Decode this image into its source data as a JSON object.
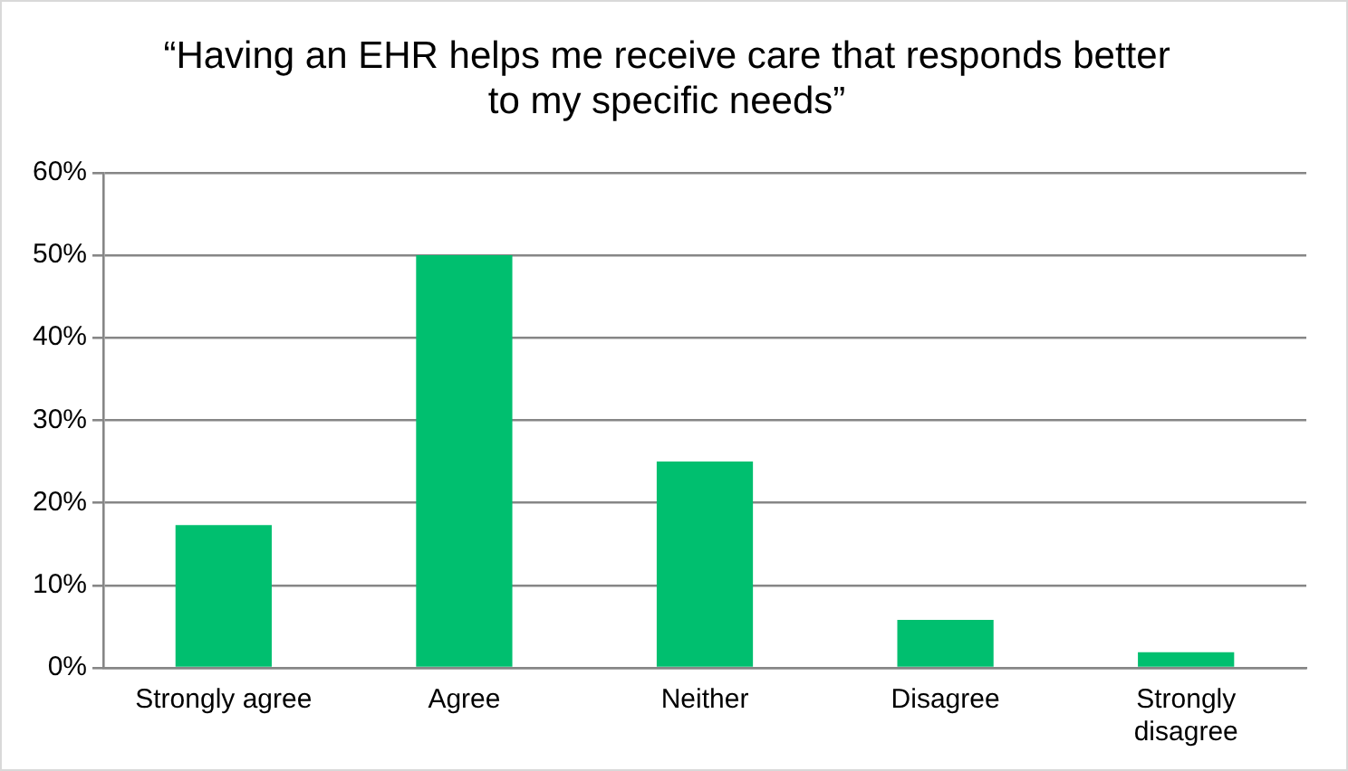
{
  "chart_data": {
    "type": "bar",
    "title": "“Having an EHR helps me receive care that responds better to my specific needs”",
    "categories": [
      "Strongly agree",
      "Agree",
      "Neither",
      "Disagree",
      "Strongly disagree"
    ],
    "values": [
      17.3,
      50,
      25,
      5.8,
      1.9
    ],
    "color": "#00bf6f",
    "ylim": [
      0,
      60
    ],
    "yticks": [
      {
        "value": 0,
        "label": "0%"
      },
      {
        "value": 10,
        "label": "10%"
      },
      {
        "value": 20,
        "label": "20%"
      },
      {
        "value": 30,
        "label": "30%"
      },
      {
        "value": 40,
        "label": "40%"
      },
      {
        "value": 50,
        "label": "50%"
      },
      {
        "value": 60,
        "label": "60%"
      }
    ],
    "grid": "y",
    "legend": false
  }
}
